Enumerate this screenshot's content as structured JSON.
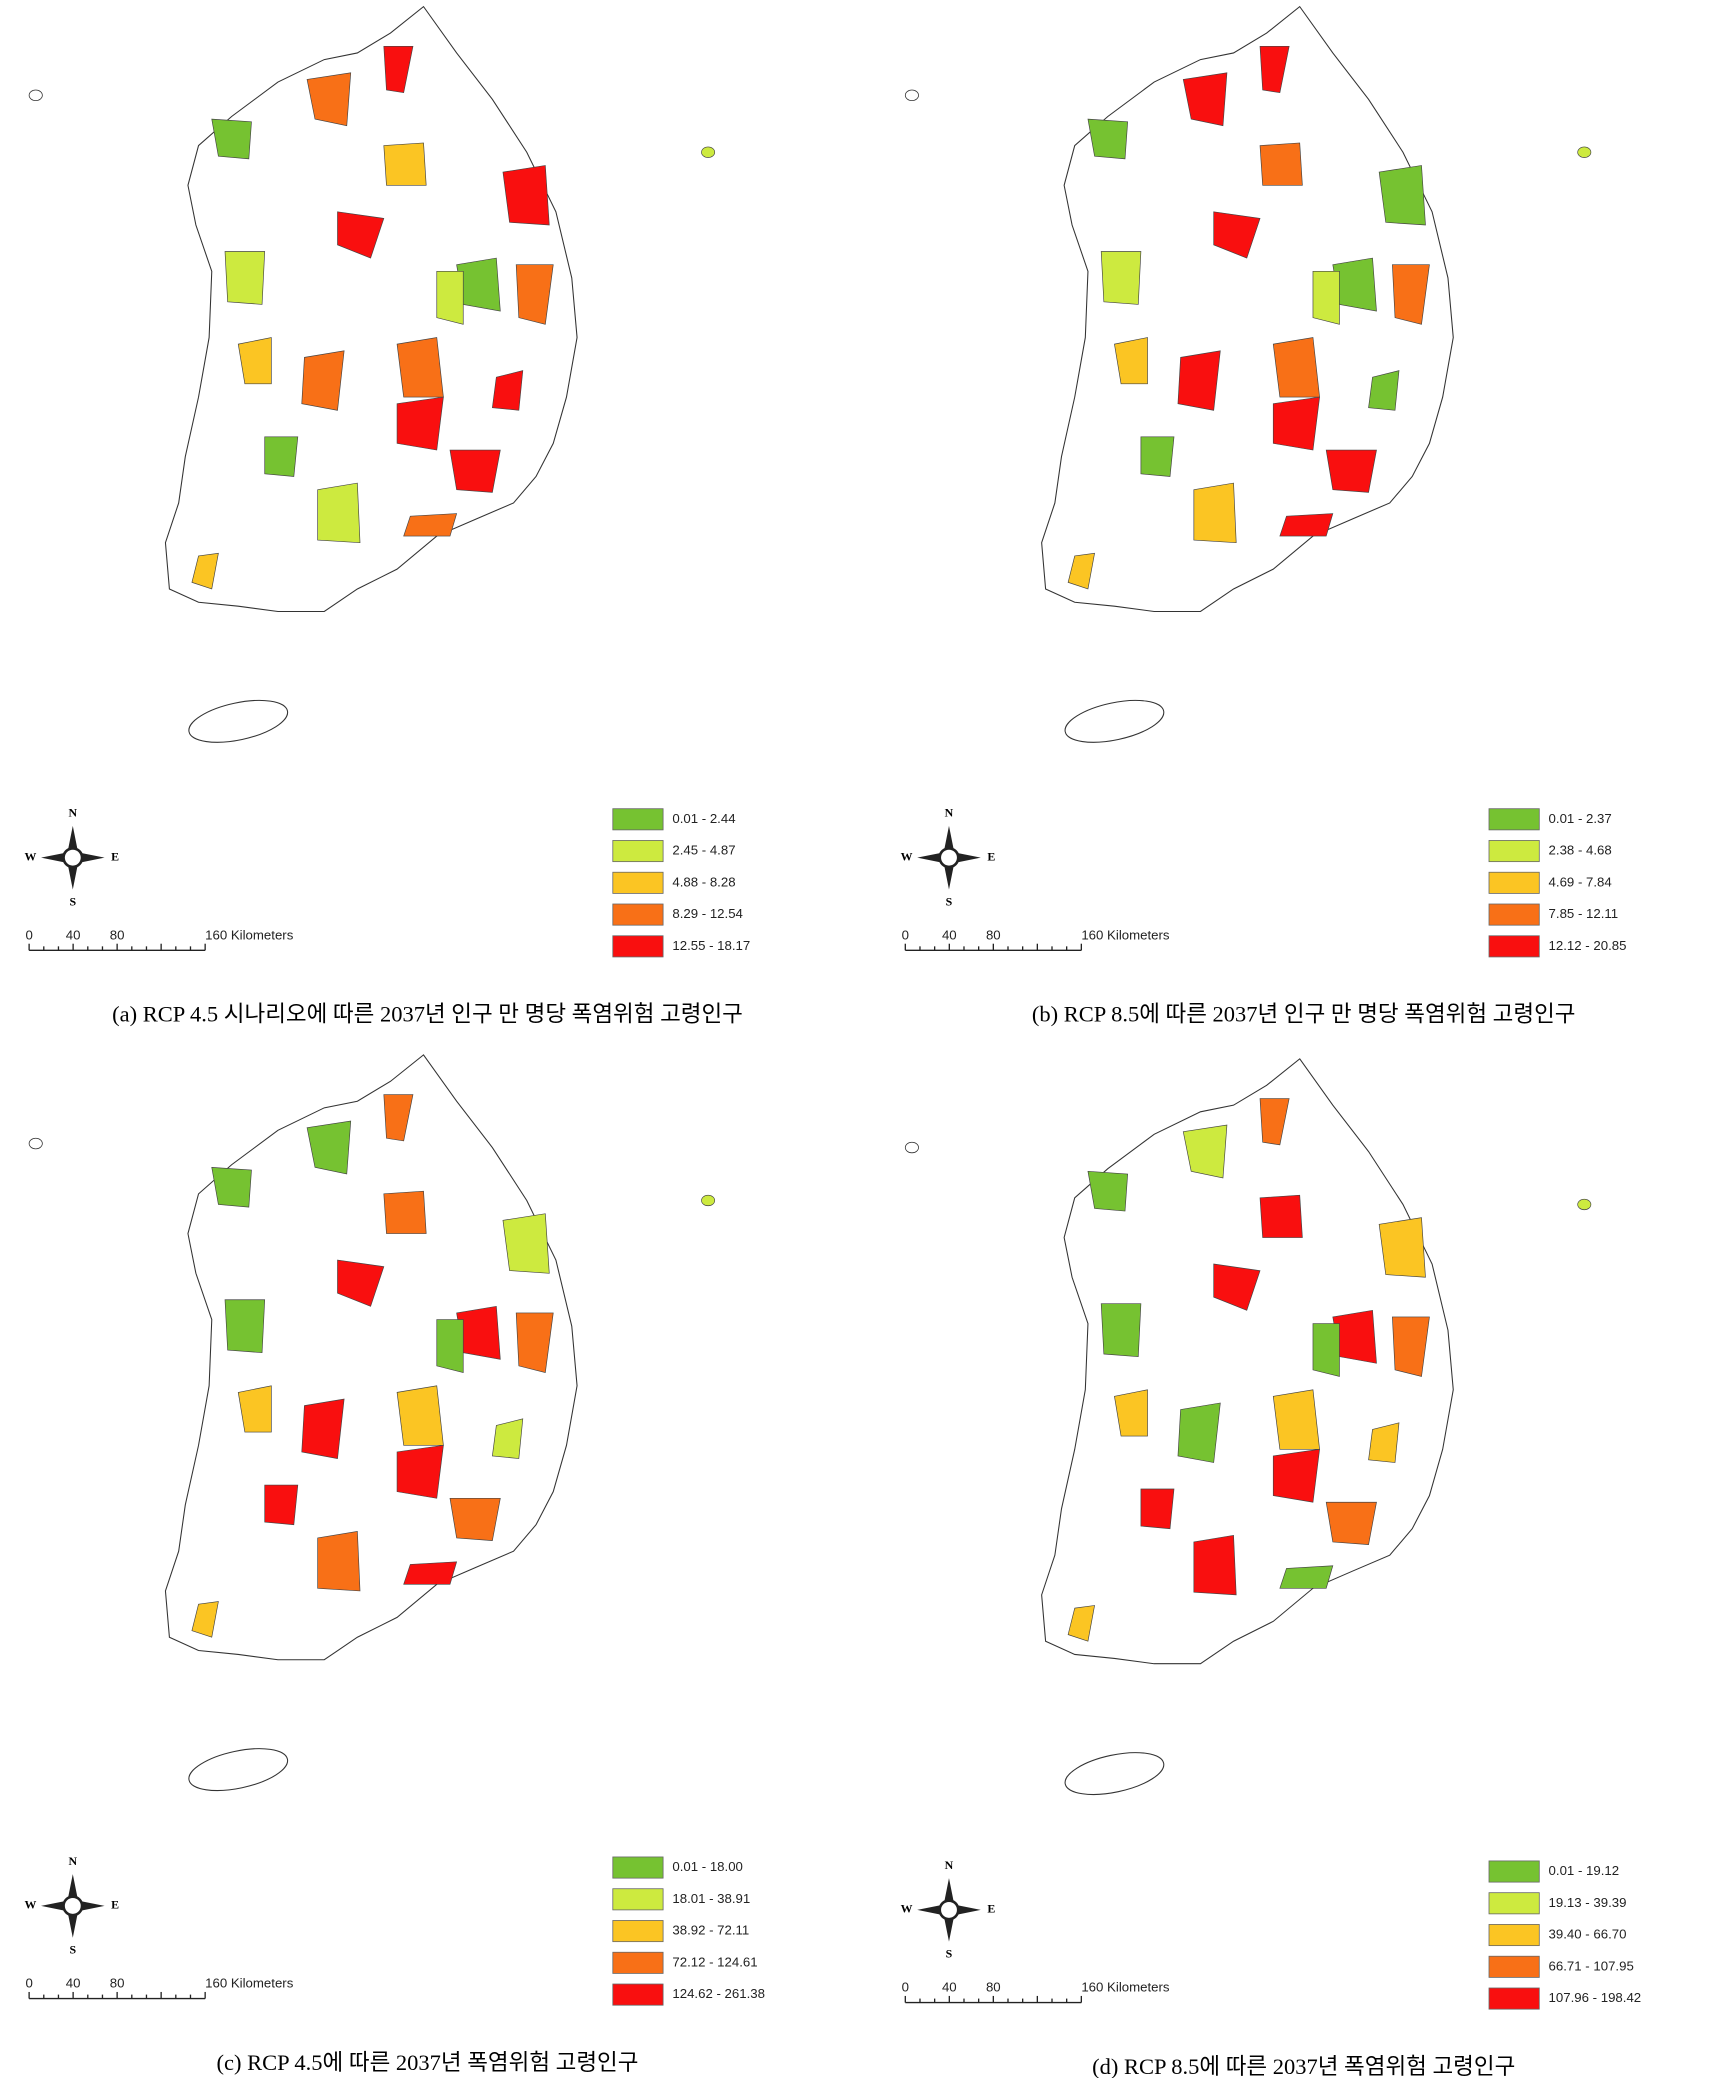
{
  "panels": [
    {
      "caption": "(a) RCP 4.5 시나리오에 따른 2037년 인구 만 명당 폭염위험 고령인구",
      "compass": {
        "n": "N",
        "s": "S",
        "w": "W",
        "e": "E"
      },
      "scale": [
        "0",
        "40",
        "80",
        "160 Kilometers"
      ],
      "legend": [
        {
          "label": "0.01 - 2.44",
          "color": "#76c231"
        },
        {
          "label": "2.45 - 4.87",
          "color": "#cdea3f"
        },
        {
          "label": "4.88 - 8.28",
          "color": "#fbc523"
        },
        {
          "label": "8.29 - 12.54",
          "color": "#f87017"
        },
        {
          "label": "12.55 - 18.17",
          "color": "#f90f0f"
        }
      ]
    },
    {
      "caption": "(b) RCP 8.5에 따른 2037년 인구 만 명당 폭염위험 고령인구",
      "compass": {
        "n": "N",
        "s": "S",
        "w": "W",
        "e": "E"
      },
      "scale": [
        "0",
        "40",
        "80",
        "160 Kilometers"
      ],
      "legend": [
        {
          "label": "0.01 - 2.37",
          "color": "#76c231"
        },
        {
          "label": "2.38 - 4.68",
          "color": "#cdea3f"
        },
        {
          "label": "4.69 - 7.84",
          "color": "#fbc523"
        },
        {
          "label": "7.85 - 12.11",
          "color": "#f87017"
        },
        {
          "label": "12.12 - 20.85",
          "color": "#f90f0f"
        }
      ]
    },
    {
      "caption": "(c) RCP 4.5에 따른 2037년 폭염위험 고령인구",
      "compass": {
        "n": "N",
        "s": "S",
        "w": "W",
        "e": "E"
      },
      "scale": [
        "0",
        "40",
        "80",
        "160 Kilometers"
      ],
      "legend": [
        {
          "label": "0.01 - 18.00",
          "color": "#76c231"
        },
        {
          "label": "18.01 - 38.91",
          "color": "#cdea3f"
        },
        {
          "label": "38.92 - 72.11",
          "color": "#fbc523"
        },
        {
          "label": "72.12 - 124.61",
          "color": "#f87017"
        },
        {
          "label": "124.62 - 261.38",
          "color": "#f90f0f"
        }
      ]
    },
    {
      "caption": "(d) RCP 8.5에 따른 2037년 폭염위험 고령인구",
      "compass": {
        "n": "N",
        "s": "S",
        "w": "W",
        "e": "E"
      },
      "scale": [
        "0",
        "40",
        "80",
        "160 Kilometers"
      ],
      "legend": [
        {
          "label": "0.01 - 19.12",
          "color": "#76c231"
        },
        {
          "label": "19.13 - 39.39",
          "color": "#cdea3f"
        },
        {
          "label": "39.40 - 66.70",
          "color": "#fbc523"
        },
        {
          "label": "66.71 - 107.95",
          "color": "#f87017"
        },
        {
          "label": "107.96 - 198.42",
          "color": "#f90f0f"
        }
      ]
    }
  ]
}
